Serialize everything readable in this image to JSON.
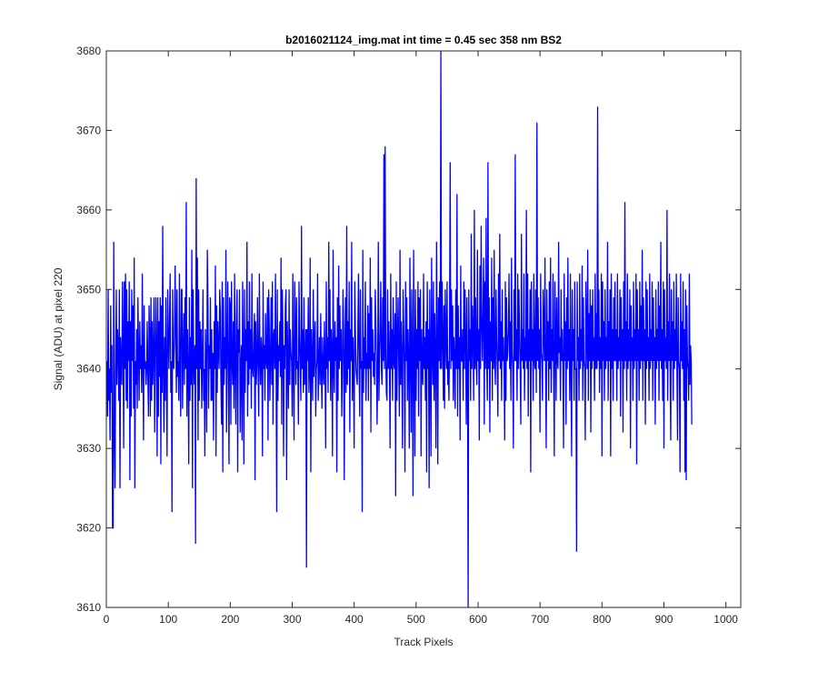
{
  "chart_data": {
    "type": "line",
    "title": "b2016021124_img.mat int time = 0.45 sec  358 nm BS2",
    "xlabel": "Track Pixels",
    "ylabel": "Signal (ADU) at pixel 220",
    "xlim": [
      0,
      1024
    ],
    "ylim": [
      3610,
      3680
    ],
    "xticks": [
      "0",
      "100",
      "200",
      "300",
      "400",
      "500",
      "600",
      "700",
      "800",
      "900",
      "1000"
    ],
    "yticks": [
      "3610",
      "3620",
      "3630",
      "3640",
      "3650",
      "3660",
      "3670",
      "3680"
    ],
    "grid": false,
    "legend": "none",
    "series": [
      {
        "color": "#0000ff",
        "x_start": 1,
        "x_step": 1,
        "values": [
          3641,
          3634,
          3650,
          3636,
          3640,
          3631,
          3648,
          3637,
          3643,
          3620,
          3620,
          3656,
          3632,
          3625,
          3640,
          3650,
          3638,
          3645,
          3643,
          3636,
          3650,
          3625,
          3644,
          3640,
          3638,
          3651,
          3644,
          3630,
          3651,
          3640,
          3652,
          3636,
          3650,
          3635,
          3646,
          3641,
          3651,
          3626,
          3646,
          3634,
          3650,
          3641,
          3648,
          3635,
          3654,
          3625,
          3641,
          3638,
          3645,
          3635,
          3649,
          3642,
          3636,
          3646,
          3640,
          3643,
          3637,
          3652,
          3641,
          3631,
          3648,
          3640,
          3641,
          3638,
          3640,
          3646,
          3639,
          3634,
          3648,
          3644,
          3634,
          3649,
          3636,
          3646,
          3638,
          3642,
          3649,
          3632,
          3641,
          3649,
          3643,
          3629,
          3649,
          3634,
          3646,
          3639,
          3649,
          3628,
          3648,
          3637,
          3658,
          3640,
          3632,
          3644,
          3636,
          3649,
          3639,
          3629,
          3650,
          3644,
          3640,
          3646,
          3652,
          3637,
          3641,
          3622,
          3650,
          3641,
          3640,
          3644,
          3653,
          3645,
          3637,
          3650,
          3639,
          3641,
          3636,
          3652,
          3640,
          3634,
          3650,
          3650,
          3635,
          3642,
          3647,
          3638,
          3649,
          3640,
          3661,
          3634,
          3645,
          3640,
          3628,
          3649,
          3636,
          3644,
          3638,
          3655,
          3625,
          3650,
          3641,
          3638,
          3643,
          3618,
          3664,
          3640,
          3654,
          3631,
          3650,
          3636,
          3646,
          3640,
          3645,
          3635,
          3641,
          3650,
          3636,
          3640,
          3629,
          3645,
          3640,
          3632,
          3655,
          3648,
          3635,
          3643,
          3640,
          3649,
          3636,
          3645,
          3636,
          3642,
          3631,
          3646,
          3640,
          3653,
          3629,
          3648,
          3637,
          3646,
          3642,
          3640,
          3650,
          3647,
          3638,
          3633,
          3651,
          3627,
          3649,
          3638,
          3644,
          3640,
          3655,
          3632,
          3642,
          3651,
          3640,
          3628,
          3649,
          3648,
          3633,
          3651,
          3641,
          3638,
          3646,
          3635,
          3652,
          3640,
          3633,
          3646,
          3650,
          3627,
          3645,
          3642,
          3650,
          3632,
          3640,
          3643,
          3631,
          3651,
          3642,
          3628,
          3650,
          3637,
          3645,
          3641,
          3656,
          3634,
          3646,
          3638,
          3651,
          3640,
          3645,
          3635,
          3652,
          3640,
          3639,
          3643,
          3647,
          3626,
          3646,
          3638,
          3641,
          3649,
          3640,
          3634,
          3652,
          3641,
          3638,
          3644,
          3642,
          3629,
          3651,
          3640,
          3643,
          3636,
          3647,
          3641,
          3640,
          3649,
          3631,
          3650,
          3645,
          3636,
          3641,
          3649,
          3638,
          3651,
          3633,
          3644,
          3645,
          3640,
          3652,
          3641,
          3622,
          3650,
          3636,
          3643,
          3641,
          3646,
          3639,
          3654,
          3633,
          3650,
          3645,
          3629,
          3643,
          3640,
          3648,
          3650,
          3626,
          3646,
          3641,
          3635,
          3650,
          3638,
          3645,
          3642,
          3641,
          3634,
          3652,
          3640,
          3631,
          3651,
          3645,
          3638,
          3649,
          3640,
          3641,
          3633,
          3651,
          3644,
          3640,
          3636,
          3658,
          3640,
          3645,
          3637,
          3649,
          3638,
          3641,
          3645,
          3615,
          3645,
          3641,
          3649,
          3637,
          3640,
          3654,
          3627,
          3645,
          3641,
          3636,
          3650,
          3639,
          3643,
          3646,
          3634,
          3640,
          3641,
          3652,
          3636,
          3640,
          3644,
          3638,
          3647,
          3640,
          3635,
          3644,
          3640,
          3638,
          3646,
          3641,
          3630,
          3651,
          3640,
          3644,
          3637,
          3656,
          3641,
          3650,
          3636,
          3645,
          3642,
          3629,
          3655,
          3640,
          3637,
          3646,
          3641,
          3644,
          3627,
          3649,
          3636,
          3653,
          3640,
          3648,
          3641,
          3645,
          3634,
          3640,
          3650,
          3645,
          3626,
          3641,
          3649,
          3637,
          3658,
          3638,
          3646,
          3640,
          3651,
          3632,
          3645,
          3641,
          3656,
          3636,
          3644,
          3640,
          3630,
          3651,
          3645,
          3640,
          3639,
          3638,
          3645,
          3652,
          3640,
          3634,
          3650,
          3640,
          3641,
          3622,
          3655,
          3637,
          3644,
          3640,
          3651,
          3636,
          3642,
          3640,
          3648,
          3636,
          3647,
          3640,
          3654,
          3632,
          3649,
          3641,
          3645,
          3639,
          3642,
          3638,
          3650,
          3646,
          3641,
          3633,
          3640,
          3656,
          3636,
          3641,
          3645,
          3651,
          3640,
          3638,
          3649,
          3641,
          3667,
          3640,
          3668,
          3642,
          3637,
          3636,
          3650,
          3640,
          3646,
          3641,
          3630,
          3652,
          3640,
          3645,
          3636,
          3649,
          3641,
          3640,
          3647,
          3624,
          3651,
          3636,
          3644,
          3649,
          3641,
          3634,
          3655,
          3638,
          3646,
          3641,
          3630,
          3650,
          3645,
          3640,
          3627,
          3651,
          3641,
          3649,
          3636,
          3645,
          3641,
          3630,
          3654,
          3642,
          3632,
          3650,
          3641,
          3624,
          3655,
          3641,
          3629,
          3650,
          3636,
          3645,
          3640,
          3651,
          3634,
          3649,
          3641,
          3650,
          3629,
          3645,
          3640,
          3638,
          3652,
          3640,
          3644,
          3636,
          3646,
          3627,
          3651,
          3640,
          3645,
          3625,
          3650,
          3641,
          3629,
          3654,
          3642,
          3638,
          3651,
          3636,
          3647,
          3641,
          3630,
          3656,
          3643,
          3628,
          3649,
          3641,
          3651,
          3640,
          3680,
          3640,
          3651,
          3644,
          3636,
          3648,
          3635,
          3650,
          3644,
          3640,
          3651,
          3638,
          3641,
          3636,
          3645,
          3666,
          3640,
          3650,
          3641,
          3648,
          3636,
          3644,
          3641,
          3635,
          3650,
          3640,
          3662,
          3634,
          3648,
          3640,
          3644,
          3631,
          3653,
          3641,
          3641,
          3645,
          3636,
          3651,
          3640,
          3650,
          3644,
          3633,
          3649,
          3640,
          3610,
          3650,
          3641,
          3645,
          3636,
          3657,
          3640,
          3648,
          3644,
          3636,
          3660,
          3640,
          3649,
          3641,
          3638,
          3655,
          3641,
          3645,
          3631,
          3653,
          3640,
          3658,
          3646,
          3641,
          3647,
          3654,
          3633,
          3651,
          3640,
          3659,
          3641,
          3636,
          3666,
          3640,
          3649,
          3632,
          3646,
          3641,
          3654,
          3636,
          3649,
          3640,
          3655,
          3641,
          3638,
          3650,
          3644,
          3640,
          3634,
          3652,
          3641,
          3657,
          3640,
          3646,
          3636,
          3650,
          3641,
          3644,
          3640,
          3631,
          3651,
          3636,
          3649,
          3641,
          3642,
          3645,
          3652,
          3640,
          3646,
          3636,
          3654,
          3642,
          3640,
          3630,
          3650,
          3641,
          3667,
          3641,
          3645,
          3636,
          3652,
          3640,
          3650,
          3644,
          3640,
          3633,
          3657,
          3641,
          3645,
          3640,
          3652,
          3636,
          3644,
          3641,
          3660,
          3640,
          3652,
          3634,
          3645,
          3641,
          3650,
          3627,
          3651,
          3641,
          3645,
          3636,
          3652,
          3641,
          3640,
          3650,
          3637,
          3671,
          3641,
          3649,
          3640,
          3645,
          3632,
          3652,
          3642,
          3641,
          3636,
          3650,
          3645,
          3641,
          3654,
          3640,
          3630,
          3650,
          3641,
          3646,
          3636,
          3651,
          3640,
          3654,
          3637,
          3645,
          3641,
          3652,
          3640,
          3629,
          3651,
          3645,
          3636,
          3649,
          3641,
          3640,
          3656,
          3642,
          3644,
          3636,
          3650,
          3641,
          3645,
          3640,
          3630,
          3652,
          3641,
          3646,
          3633,
          3649,
          3640,
          3654,
          3641,
          3645,
          3636,
          3652,
          3640,
          3629,
          3650,
          3641,
          3645,
          3636,
          3651,
          3640,
          3640,
          3617,
          3651,
          3641,
          3644,
          3636,
          3652,
          3640,
          3645,
          3641,
          3653,
          3636,
          3649,
          3641,
          3640,
          3631,
          3651,
          3645,
          3640,
          3655,
          3636,
          3647,
          3641,
          3650,
          3632,
          3648,
          3640,
          3650,
          3641,
          3644,
          3636,
          3652,
          3640,
          3647,
          3640,
          3673,
          3641,
          3650,
          3637,
          3644,
          3640,
          3652,
          3629,
          3651,
          3641,
          3646,
          3636,
          3650,
          3640,
          3644,
          3641,
          3656,
          3636,
          3646,
          3641,
          3650,
          3629,
          3652,
          3640,
          3645,
          3636,
          3649,
          3641,
          3651,
          3641,
          3645,
          3636,
          3652,
          3640,
          3644,
          3641,
          3650,
          3634,
          3649,
          3641,
          3645,
          3632,
          3651,
          3640,
          3661,
          3641,
          3646,
          3636,
          3652,
          3640,
          3645,
          3641,
          3650,
          3630,
          3648,
          3641,
          3644,
          3636,
          3651,
          3640,
          3645,
          3641,
          3652,
          3628,
          3650,
          3641,
          3645,
          3636,
          3651,
          3640,
          3648,
          3641,
          3655,
          3636,
          3649,
          3641,
          3645,
          3633,
          3651,
          3640,
          3650,
          3641,
          3644,
          3636,
          3652,
          3640,
          3645,
          3641,
          3651,
          3636,
          3649,
          3641,
          3644,
          3633,
          3650,
          3640,
          3645,
          3641,
          3651,
          3636,
          3648,
          3641,
          3656,
          3640,
          3645,
          3636,
          3651,
          3630,
          3650,
          3641,
          3644,
          3640,
          3660,
          3636,
          3646,
          3641,
          3652,
          3640,
          3631,
          3650,
          3641,
          3646,
          3636,
          3651,
          3640,
          3645,
          3641,
          3652,
          3640,
          3631,
          3649,
          3641,
          3640,
          3627,
          3652,
          3641,
          3646,
          3640,
          3651,
          3636,
          3645,
          3627,
          3650,
          3626,
          3648,
          3641,
          3640,
          3636,
          3652,
          3638,
          3643,
          3641,
          3633
        ]
      }
    ]
  }
}
